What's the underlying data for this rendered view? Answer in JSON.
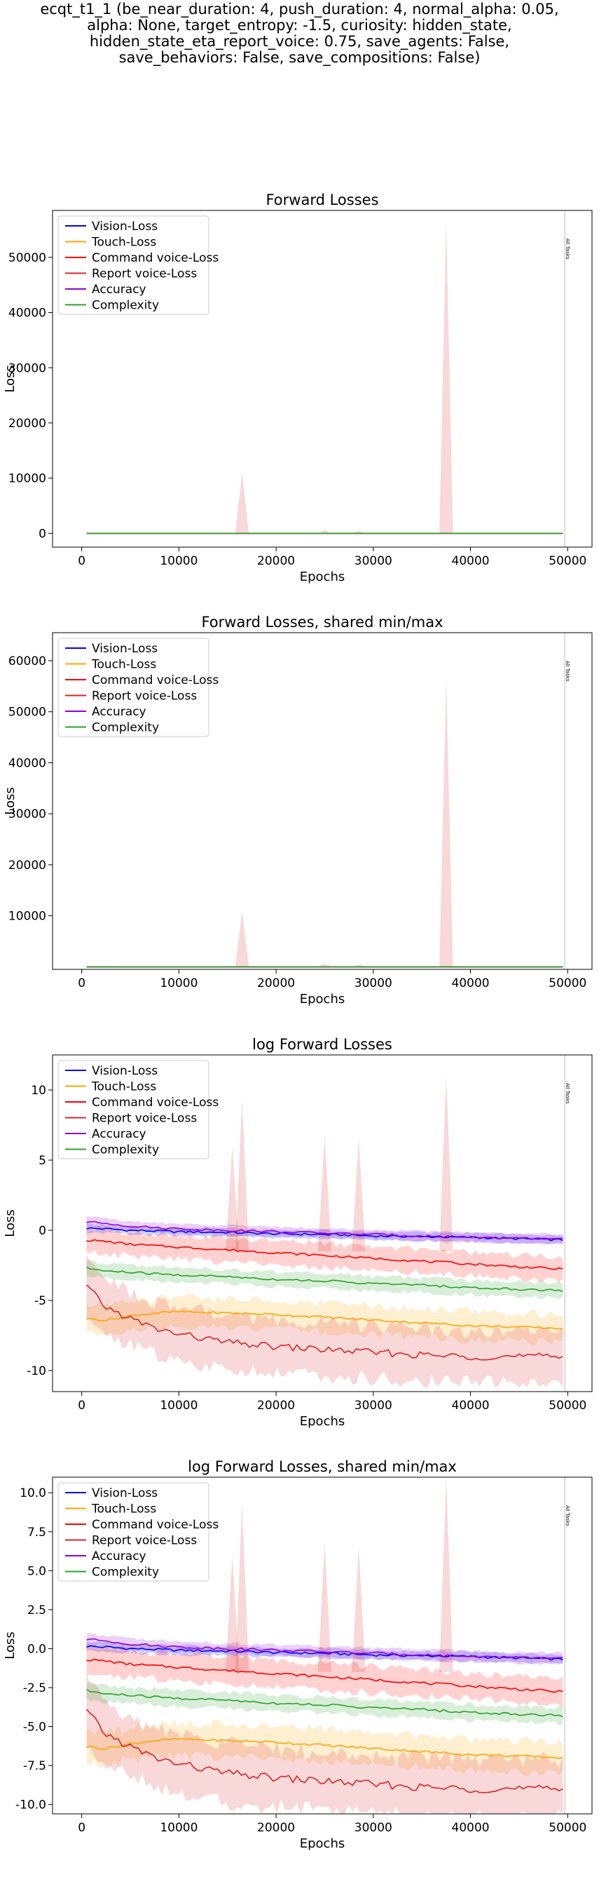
{
  "suptitle_lines": [
    "ecqt_t1_1 (be_near_duration: 4, push_duration: 4, normal_alpha: 0.05,",
    "alpha: None, target_entropy: -1.5, curiosity: hidden_state,",
    "hidden_state_eta_report_voice: 0.75, save_agents: False,",
    "save_behaviors: False, save_compositions: False)"
  ],
  "colors": {
    "vision": "#0000ff",
    "touch": "#ffa500",
    "command": "#ff0000",
    "report": "#d62728",
    "accuracy": "#9400d3",
    "complexity": "#2ca02c"
  },
  "legend": [
    "Vision-Loss",
    "Touch-Loss",
    "Command voice-Loss",
    "Report voice-Loss",
    "Accuracy",
    "Complexity"
  ],
  "vline_label": "All Tasks",
  "chart_data": [
    {
      "type": "line",
      "title": "Forward Losses",
      "xlabel": "Epochs",
      "ylabel": "Loss",
      "xlim": [
        -3000,
        52500
      ],
      "ylim": [
        -2500,
        58500
      ],
      "xticks": [
        0,
        10000,
        20000,
        30000,
        40000,
        50000
      ],
      "yticks": [
        0,
        10000,
        20000,
        30000,
        40000,
        50000
      ],
      "legend_position": "upper-left",
      "vline_x": 49700,
      "log": false,
      "spikes": [
        {
          "series": "Command voice-Loss",
          "x": 16500,
          "peak": 11000
        },
        {
          "series": "Command voice-Loss",
          "x": 25000,
          "peak": 600
        },
        {
          "series": "Command voice-Loss",
          "x": 28500,
          "peak": 500
        },
        {
          "series": "Command voice-Loss",
          "x": 37500,
          "peak": 56500
        }
      ]
    },
    {
      "type": "line",
      "title": "Forward Losses, shared min/max",
      "xlabel": "Epochs",
      "ylabel": "Loss",
      "xlim": [
        -3000,
        52500
      ],
      "ylim": [
        -500,
        65500
      ],
      "xticks": [
        0,
        10000,
        20000,
        30000,
        40000,
        50000
      ],
      "yticks": [
        10000,
        20000,
        30000,
        40000,
        50000,
        60000
      ],
      "legend_position": "upper-left",
      "vline_x": 49700,
      "log": false,
      "spikes": [
        {
          "series": "Command voice-Loss",
          "x": 16500,
          "peak": 11000
        },
        {
          "series": "Command voice-Loss",
          "x": 25000,
          "peak": 600
        },
        {
          "series": "Command voice-Loss",
          "x": 28500,
          "peak": 500
        },
        {
          "series": "Command voice-Loss",
          "x": 37500,
          "peak": 56500
        }
      ]
    },
    {
      "type": "line",
      "title": "log Forward Losses",
      "xlabel": "Epochs",
      "ylabel": "Loss",
      "xlim": [
        -3000,
        52500
      ],
      "ylim": [
        -11.5,
        12.5
      ],
      "xticks": [
        0,
        10000,
        20000,
        30000,
        40000,
        50000
      ],
      "yticks": [
        -10,
        -5,
        0,
        5,
        10
      ],
      "legend_position": "upper-left",
      "vline_x": 49700,
      "log": true,
      "spikes": [
        {
          "series": "Command voice-Loss",
          "x": 15500,
          "peak": 6.0
        },
        {
          "series": "Command voice-Loss",
          "x": 16500,
          "peak": 9.3
        },
        {
          "series": "Command voice-Loss",
          "x": 25000,
          "peak": 6.7
        },
        {
          "series": "Command voice-Loss",
          "x": 28500,
          "peak": 6.5
        },
        {
          "series": "Command voice-Loss",
          "x": 37500,
          "peak": 11.0
        }
      ]
    },
    {
      "type": "line",
      "title": "log Forward Losses, shared min/max",
      "xlabel": "Epochs",
      "ylabel": "Loss",
      "xlim": [
        -3000,
        52500
      ],
      "ylim": [
        -10.6,
        11.0
      ],
      "xticks": [
        0,
        10000,
        20000,
        30000,
        40000,
        50000
      ],
      "yticks": [
        -10.0,
        -7.5,
        -5.0,
        -2.5,
        0.0,
        2.5,
        5.0,
        7.5,
        10.0
      ],
      "legend_position": "upper-left",
      "vline_x": 49700,
      "log": true,
      "spikes": [
        {
          "series": "Command voice-Loss",
          "x": 15500,
          "peak": 6.0
        },
        {
          "series": "Command voice-Loss",
          "x": 16500,
          "peak": 9.3
        },
        {
          "series": "Command voice-Loss",
          "x": 25000,
          "peak": 6.7
        },
        {
          "series": "Command voice-Loss",
          "x": 28500,
          "peak": 6.5
        },
        {
          "series": "Command voice-Loss",
          "x": 37500,
          "peak": 11.0
        }
      ]
    }
  ],
  "series_linear": {
    "x": [
      0,
      2500,
      5000,
      10000,
      20000,
      30000,
      40000,
      50000
    ],
    "Vision-Loss": [
      1.3,
      1.1,
      1.0,
      0.95,
      0.85,
      0.75,
      0.65,
      0.6
    ],
    "Touch-Loss": [
      0.003,
      0.003,
      0.003,
      0.003,
      0.002,
      0.002,
      0.002,
      0.002
    ],
    "Command voice-Loss": [
      0.4,
      0.35,
      0.3,
      0.25,
      0.2,
      0.15,
      0.12,
      0.1
    ],
    "Report voice-Loss": [
      0.05,
      0.01,
      0.005,
      0.002,
      0.001,
      0.001,
      0.001,
      0.001
    ],
    "Accuracy": [
      2.7,
      1.7,
      1.5,
      1.3,
      1.0,
      0.85,
      0.7,
      0.6
    ],
    "Complexity": [
      0.08,
      0.06,
      0.05,
      0.04,
      0.03,
      0.02,
      0.015,
      0.013
    ]
  },
  "series_log": {
    "x": [
      0,
      500,
      2500,
      5000,
      7500,
      10000,
      15000,
      20000,
      25000,
      30000,
      35000,
      40000,
      45000,
      50000
    ],
    "Vision-Loss": [
      0.2,
      0.15,
      0.1,
      0.0,
      -0.05,
      -0.1,
      -0.15,
      -0.25,
      -0.3,
      -0.4,
      -0.45,
      -0.5,
      -0.6,
      -0.7
    ],
    "Touch-Loss": [
      -6.0,
      -6.3,
      -6.4,
      -6.1,
      -5.9,
      -5.8,
      -5.9,
      -6.0,
      -6.2,
      -6.4,
      -6.6,
      -6.8,
      -6.9,
      -7.0
    ],
    "Command voice-Loss": [
      -1.0,
      -0.7,
      -0.8,
      -1.0,
      -1.1,
      -1.2,
      -1.4,
      -1.6,
      -1.8,
      -2.0,
      -2.2,
      -2.4,
      -2.6,
      -2.8
    ],
    "Report voice-Loss": [
      -1.5,
      -4.0,
      -5.5,
      -6.3,
      -7.0,
      -7.4,
      -8.0,
      -8.3,
      -8.5,
      -8.7,
      -8.9,
      -9.0,
      -9.0,
      -9.0
    ],
    "Accuracy": [
      1.0,
      0.6,
      0.5,
      0.3,
      0.2,
      0.1,
      0.0,
      -0.1,
      -0.2,
      -0.3,
      -0.4,
      -0.5,
      -0.6,
      -0.6
    ],
    "Complexity": [
      -2.5,
      -2.7,
      -2.9,
      -3.0,
      -3.1,
      -3.2,
      -3.3,
      -3.5,
      -3.6,
      -3.8,
      -3.9,
      -4.1,
      -4.2,
      -4.3
    ]
  },
  "band_half_width_log": {
    "Vision-Loss": 0.35,
    "Touch-Loss": 1.2,
    "Command voice-Loss": 1.0,
    "Report voice-Loss": 2.2,
    "Accuracy": 0.4,
    "Complexity": 0.6
  }
}
